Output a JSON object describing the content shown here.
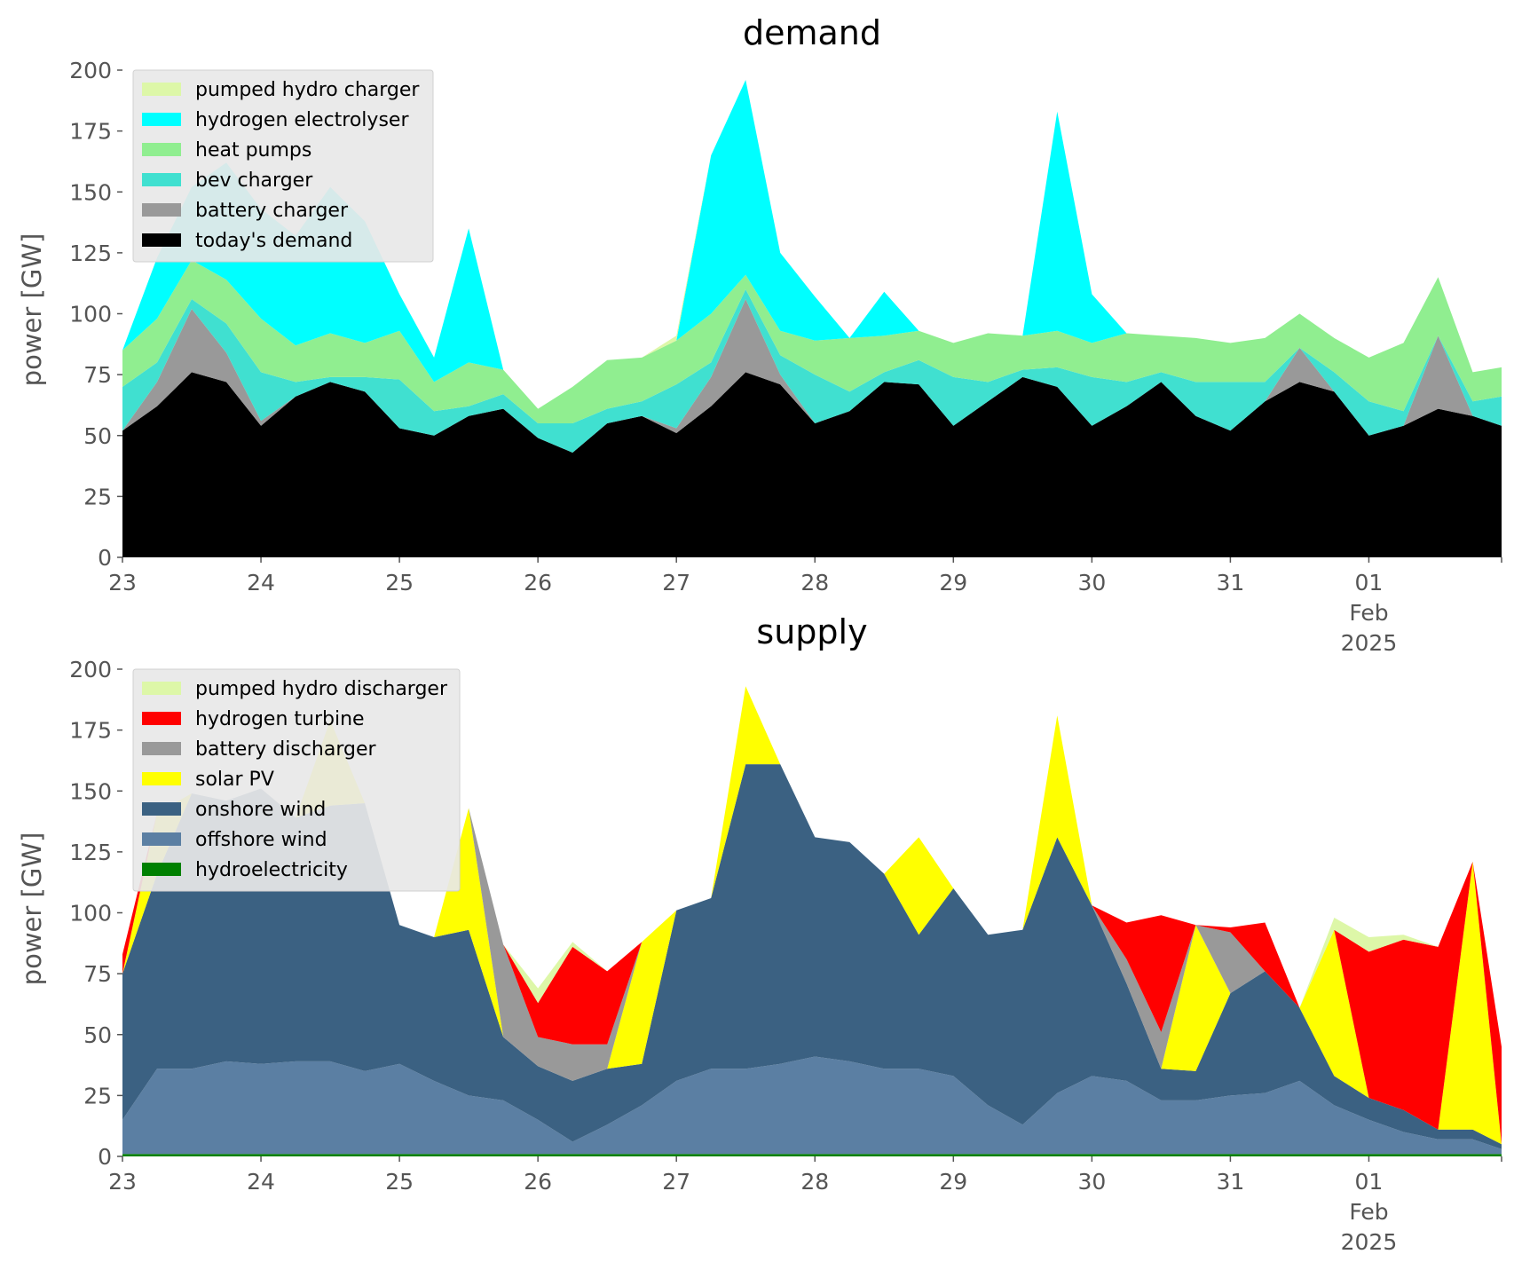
{
  "chart_data": [
    {
      "type": "area",
      "title": "demand",
      "ylabel": "power [GW]",
      "ylim": [
        0,
        200
      ],
      "yticks": [
        "0",
        "25",
        "50",
        "75",
        "100",
        "125",
        "150",
        "175",
        "200"
      ],
      "xlim": [
        "2025-01-23 00:00",
        "2025-02-01 23:00"
      ],
      "xticks": [
        {
          "x": "2025-01-23",
          "label": "23"
        },
        {
          "x": "2025-01-24",
          "label": "24"
        },
        {
          "x": "2025-01-25",
          "label": "25"
        },
        {
          "x": "2025-01-26",
          "label": "26"
        },
        {
          "x": "2025-01-27",
          "label": "27"
        },
        {
          "x": "2025-01-28",
          "label": "28"
        },
        {
          "x": "2025-01-29",
          "label": "29"
        },
        {
          "x": "2025-01-30",
          "label": "30"
        },
        {
          "x": "2025-01-31",
          "label": "31"
        },
        {
          "x": "2025-02-01",
          "label": "01",
          "sub1": "Feb",
          "sub2": "2025"
        }
      ],
      "grid": false,
      "legend_position": "top-left",
      "stacked": true,
      "x": [
        "2025-01-23 00:00",
        "2025-01-23 06:00",
        "2025-01-23 12:00",
        "2025-01-23 18:00",
        "2025-01-24 00:00",
        "2025-01-24 06:00",
        "2025-01-24 12:00",
        "2025-01-24 18:00",
        "2025-01-25 00:00",
        "2025-01-25 06:00",
        "2025-01-25 12:00",
        "2025-01-25 18:00",
        "2025-01-26 00:00",
        "2025-01-26 06:00",
        "2025-01-26 12:00",
        "2025-01-26 18:00",
        "2025-01-27 00:00",
        "2025-01-27 06:00",
        "2025-01-27 12:00",
        "2025-01-27 18:00",
        "2025-01-28 00:00",
        "2025-01-28 06:00",
        "2025-01-28 12:00",
        "2025-01-28 18:00",
        "2025-01-29 00:00",
        "2025-01-29 06:00",
        "2025-01-29 12:00",
        "2025-01-29 18:00",
        "2025-01-30 00:00",
        "2025-01-30 06:00",
        "2025-01-30 12:00",
        "2025-01-30 18:00",
        "2025-01-31 00:00",
        "2025-01-31 06:00",
        "2025-01-31 12:00",
        "2025-01-31 18:00",
        "2025-02-01 00:00",
        "2025-02-01 06:00",
        "2025-02-01 12:00",
        "2025-02-01 18:00",
        "2025-02-01 23:00"
      ],
      "series": [
        {
          "name": "today's demand",
          "color": "#000000",
          "values": [
            52,
            62,
            76,
            72,
            54,
            66,
            72,
            68,
            53,
            50,
            58,
            61,
            49,
            43,
            55,
            58,
            51,
            62,
            76,
            71,
            55,
            60,
            72,
            71,
            54,
            64,
            74,
            70,
            54,
            62,
            72,
            58,
            52,
            64,
            72,
            68,
            50,
            54,
            61,
            58,
            54
          ]
        },
        {
          "name": "battery charger",
          "color": "#999999",
          "values": [
            0,
            10,
            26,
            12,
            2,
            0,
            0,
            0,
            0,
            0,
            0,
            0,
            0,
            0,
            0,
            0,
            2,
            12,
            30,
            4,
            0,
            0,
            0,
            0,
            0,
            0,
            0,
            0,
            0,
            0,
            0,
            0,
            0,
            0,
            14,
            0,
            0,
            0,
            30,
            0,
            0
          ]
        },
        {
          "name": "bev charger",
          "color": "#40e0d0",
          "values": [
            18,
            8,
            4,
            12,
            20,
            6,
            2,
            6,
            20,
            10,
            4,
            6,
            6,
            12,
            6,
            6,
            18,
            6,
            4,
            8,
            20,
            8,
            4,
            10,
            20,
            8,
            3,
            8,
            20,
            10,
            4,
            14,
            20,
            8,
            0,
            8,
            14,
            6,
            0,
            6,
            12
          ]
        },
        {
          "name": "heat pumps",
          "color": "#90ee90",
          "values": [
            15,
            18,
            16,
            18,
            22,
            15,
            18,
            14,
            20,
            12,
            18,
            10,
            6,
            15,
            20,
            18,
            18,
            20,
            6,
            10,
            14,
            22,
            15,
            12,
            14,
            20,
            14,
            15,
            14,
            20,
            15,
            18,
            16,
            18,
            14,
            14,
            18,
            28,
            24,
            12,
            12
          ]
        },
        {
          "name": "hydrogen electrolyser",
          "color": "#00ffff",
          "values": [
            0,
            25,
            30,
            48,
            45,
            45,
            60,
            50,
            15,
            10,
            55,
            0,
            0,
            0,
            0,
            0,
            0,
            65,
            80,
            32,
            18,
            0,
            18,
            0,
            0,
            0,
            0,
            90,
            20,
            0,
            0,
            0,
            0,
            0,
            0,
            0,
            0,
            0,
            0,
            0,
            0
          ]
        },
        {
          "name": "pumped hydro charger",
          "color": "#ddf7a8",
          "values": [
            0,
            0,
            0,
            0,
            0,
            0,
            0,
            0,
            0,
            0,
            0,
            0,
            0,
            0,
            0,
            0,
            2,
            0,
            0,
            0,
            0,
            0,
            0,
            0,
            0,
            0,
            0,
            0,
            0,
            0,
            0,
            0,
            0,
            0,
            0,
            0,
            0,
            0,
            0,
            0,
            0
          ]
        }
      ]
    },
    {
      "type": "area",
      "title": "supply",
      "ylabel": "power [GW]",
      "ylim": [
        0,
        200
      ],
      "yticks": [
        "0",
        "25",
        "50",
        "75",
        "100",
        "125",
        "150",
        "175",
        "200"
      ],
      "xlim": [
        "2025-01-23 00:00",
        "2025-02-01 23:00"
      ],
      "xticks": [
        {
          "x": "2025-01-23",
          "label": "23"
        },
        {
          "x": "2025-01-24",
          "label": "24"
        },
        {
          "x": "2025-01-25",
          "label": "25"
        },
        {
          "x": "2025-01-26",
          "label": "26"
        },
        {
          "x": "2025-01-27",
          "label": "27"
        },
        {
          "x": "2025-01-28",
          "label": "28"
        },
        {
          "x": "2025-01-29",
          "label": "29"
        },
        {
          "x": "2025-01-30",
          "label": "30"
        },
        {
          "x": "2025-01-31",
          "label": "31"
        },
        {
          "x": "2025-02-01",
          "label": "01",
          "sub1": "Feb",
          "sub2": "2025"
        }
      ],
      "grid": false,
      "legend_position": "top-left",
      "stacked": true,
      "x": [
        "2025-01-23 00:00",
        "2025-01-23 06:00",
        "2025-01-23 12:00",
        "2025-01-23 18:00",
        "2025-01-24 00:00",
        "2025-01-24 06:00",
        "2025-01-24 12:00",
        "2025-01-24 18:00",
        "2025-01-25 00:00",
        "2025-01-25 06:00",
        "2025-01-25 12:00",
        "2025-01-25 18:00",
        "2025-01-26 00:00",
        "2025-01-26 06:00",
        "2025-01-26 12:00",
        "2025-01-26 18:00",
        "2025-01-27 00:00",
        "2025-01-27 06:00",
        "2025-01-27 12:00",
        "2025-01-27 18:00",
        "2025-01-28 00:00",
        "2025-01-28 06:00",
        "2025-01-28 12:00",
        "2025-01-28 18:00",
        "2025-01-29 00:00",
        "2025-01-29 06:00",
        "2025-01-29 12:00",
        "2025-01-29 18:00",
        "2025-01-30 00:00",
        "2025-01-30 06:00",
        "2025-01-30 12:00",
        "2025-01-30 18:00",
        "2025-01-31 00:00",
        "2025-01-31 06:00",
        "2025-01-31 12:00",
        "2025-01-31 18:00",
        "2025-02-01 00:00",
        "2025-02-01 06:00",
        "2025-02-01 12:00",
        "2025-02-01 18:00",
        "2025-02-01 23:00"
      ],
      "series": [
        {
          "name": "hydroelectricity",
          "color": "#008000",
          "values": [
            1,
            1,
            1,
            1,
            1,
            1,
            1,
            1,
            1,
            1,
            1,
            1,
            1,
            1,
            1,
            1,
            1,
            1,
            1,
            1,
            1,
            1,
            1,
            1,
            1,
            1,
            1,
            1,
            1,
            1,
            1,
            1,
            1,
            1,
            1,
            1,
            1,
            1,
            1,
            1,
            1
          ]
        },
        {
          "name": "offshore wind",
          "color": "#5b7fa3",
          "values": [
            14,
            35,
            35,
            38,
            37,
            38,
            38,
            34,
            37,
            30,
            24,
            22,
            14,
            5,
            12,
            20,
            30,
            35,
            35,
            37,
            40,
            38,
            35,
            35,
            32,
            20,
            12,
            25,
            32,
            30,
            22,
            22,
            24,
            25,
            30,
            20,
            14,
            9,
            6,
            6,
            2
          ]
        },
        {
          "name": "onshore wind",
          "color": "#3b6182",
          "values": [
            60,
            80,
            113,
            107,
            113,
            100,
            105,
            110,
            57,
            59,
            68,
            26,
            22,
            25,
            23,
            17,
            70,
            70,
            125,
            123,
            90,
            90,
            80,
            55,
            77,
            70,
            80,
            105,
            70,
            40,
            13,
            12,
            42,
            50,
            30,
            12,
            9,
            9,
            4,
            4,
            2
          ]
        },
        {
          "name": "solar PV",
          "color": "#ffff00",
          "values": [
            0,
            25,
            0,
            0,
            0,
            0,
            35,
            0,
            0,
            0,
            50,
            0,
            0,
            0,
            0,
            50,
            0,
            0,
            32,
            0,
            0,
            0,
            0,
            40,
            0,
            0,
            0,
            50,
            0,
            0,
            0,
            60,
            0,
            0,
            0,
            60,
            0,
            0,
            0,
            110,
            0
          ]
        },
        {
          "name": "battery discharger",
          "color": "#999999",
          "values": [
            0,
            0,
            0,
            0,
            0,
            0,
            0,
            0,
            0,
            0,
            0,
            38,
            12,
            15,
            10,
            0,
            0,
            0,
            0,
            0,
            0,
            0,
            0,
            0,
            0,
            0,
            0,
            0,
            0,
            10,
            15,
            0,
            25,
            0,
            0,
            0,
            0,
            0,
            0,
            0,
            0
          ]
        },
        {
          "name": "hydrogen turbine",
          "color": "#ff0000",
          "values": [
            8,
            0,
            0,
            0,
            0,
            0,
            0,
            0,
            0,
            0,
            0,
            0,
            14,
            40,
            30,
            0,
            0,
            0,
            0,
            0,
            0,
            0,
            0,
            0,
            0,
            0,
            0,
            0,
            0,
            15,
            48,
            0,
            2,
            20,
            0,
            0,
            60,
            70,
            75,
            0,
            40
          ]
        },
        {
          "name": "pumped hydro discharger",
          "color": "#ddf7a8",
          "values": [
            0,
            0,
            0,
            0,
            0,
            0,
            0,
            0,
            0,
            0,
            0,
            0,
            6,
            2,
            0,
            0,
            0,
            0,
            0,
            0,
            0,
            0,
            0,
            0,
            0,
            0,
            0,
            0,
            0,
            0,
            0,
            0,
            0,
            0,
            0,
            5,
            6,
            2,
            0,
            0,
            0
          ]
        }
      ]
    }
  ]
}
